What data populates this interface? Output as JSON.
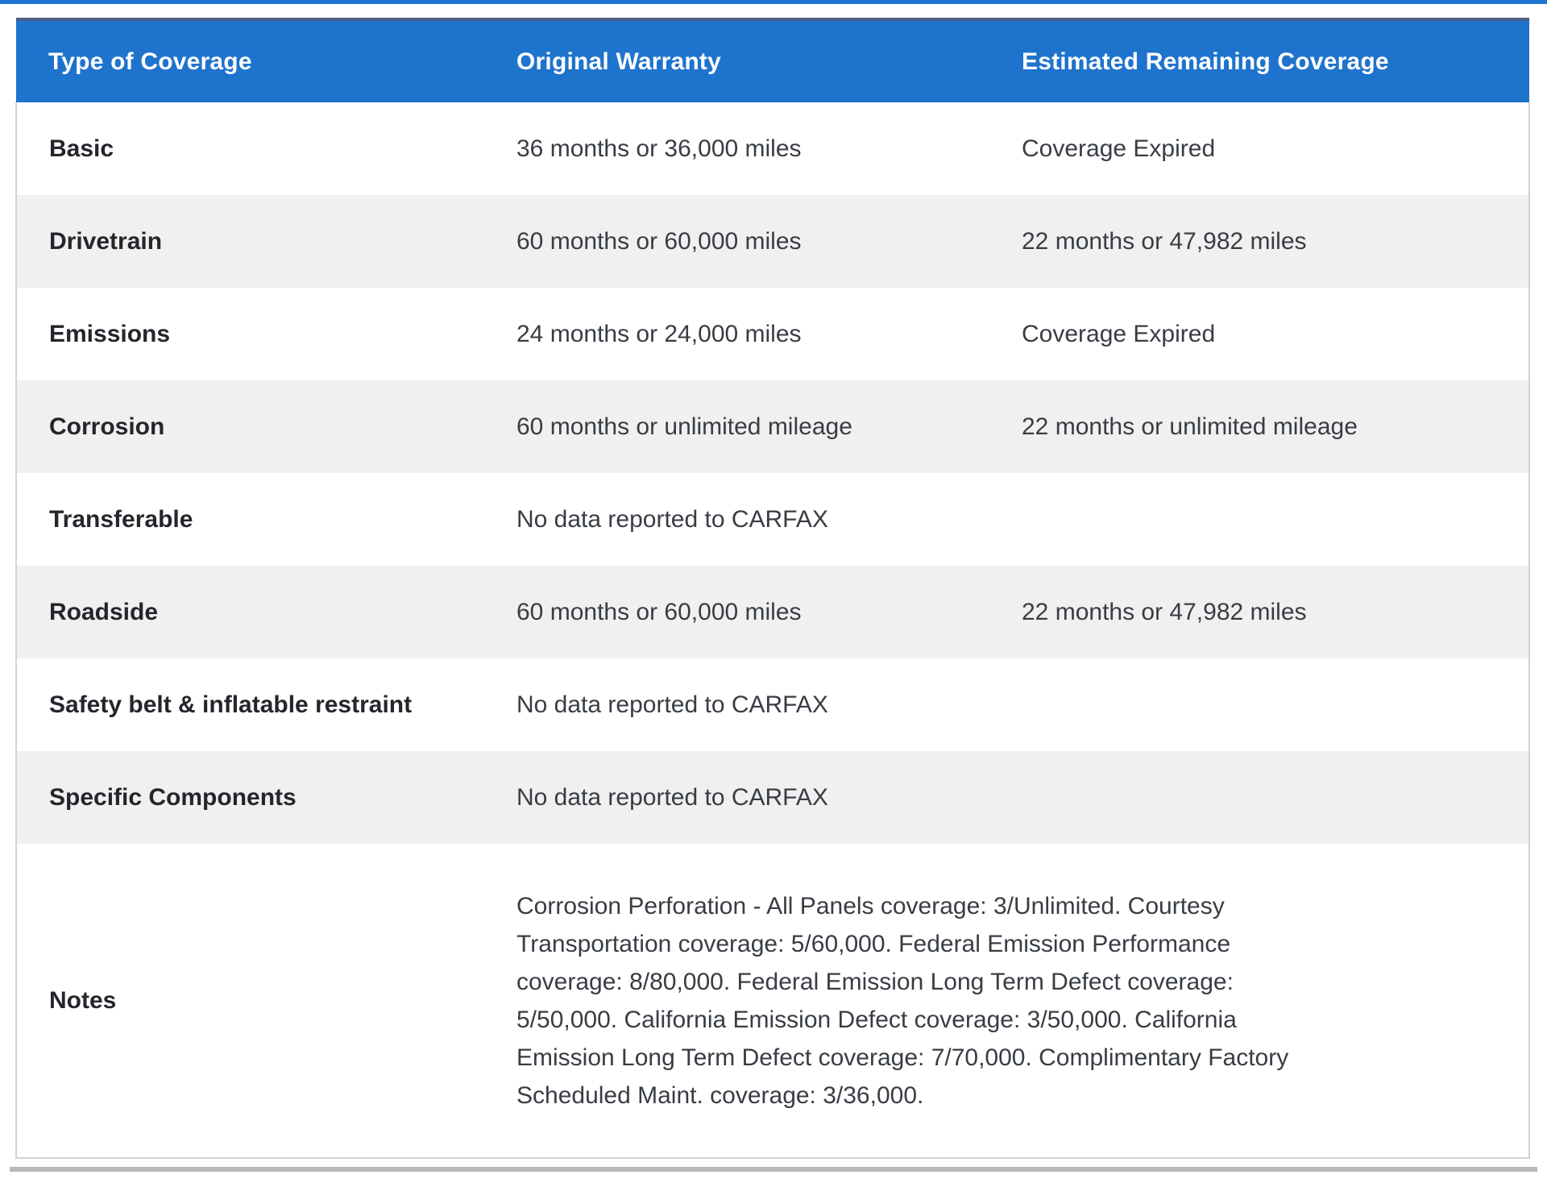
{
  "colors": {
    "header_bg": "#1e73cd",
    "header_top_edge": "#4c6183",
    "top_strip": "#2074d4",
    "stripe_row_bg": "#f0f0f0",
    "table_border": "#d2d2d2",
    "bottom_bar": "#b9b9b9",
    "header_text": "#ffffff",
    "label_text": "#23262b",
    "value_text": "#383d44"
  },
  "table": {
    "headers": {
      "type": "Type of Coverage",
      "original": "Original Warranty",
      "remaining": "Estimated Remaining Coverage"
    },
    "rows": [
      {
        "type": "Basic",
        "original": "36 months or 36,000 miles",
        "remaining": "Coverage Expired"
      },
      {
        "type": "Drivetrain",
        "original": "60 months or 60,000 miles",
        "remaining": "22 months or 47,982 miles"
      },
      {
        "type": "Emissions",
        "original": "24 months or 24,000 miles",
        "remaining": "Coverage Expired"
      },
      {
        "type": "Corrosion",
        "original": "60 months or unlimited mileage",
        "remaining": "22 months or unlimited mileage"
      },
      {
        "type": "Transferable",
        "original": "No data reported to CARFAX",
        "remaining": ""
      },
      {
        "type": "Roadside",
        "original": "60 months or 60,000 miles",
        "remaining": "22 months or 47,982 miles"
      },
      {
        "type": "Safety belt & inflatable restraint",
        "original": "No data reported to CARFAX",
        "remaining": ""
      },
      {
        "type": "Specific Components",
        "original": "No data reported to CARFAX",
        "remaining": ""
      },
      {
        "type": "Notes",
        "original": "Corrosion Perforation - All Panels coverage: 3/Unlimited. Courtesy Transportation coverage: 5/60,000. Federal Emission Performance coverage: 8/80,000. Federal Emission Long Term Defect coverage: 5/50,000. California Emission Defect coverage: 3/50,000. California Emission Long Term Defect coverage: 7/70,000. Complimentary Factory Scheduled Maint. coverage: 3/36,000.",
        "remaining": ""
      }
    ]
  }
}
